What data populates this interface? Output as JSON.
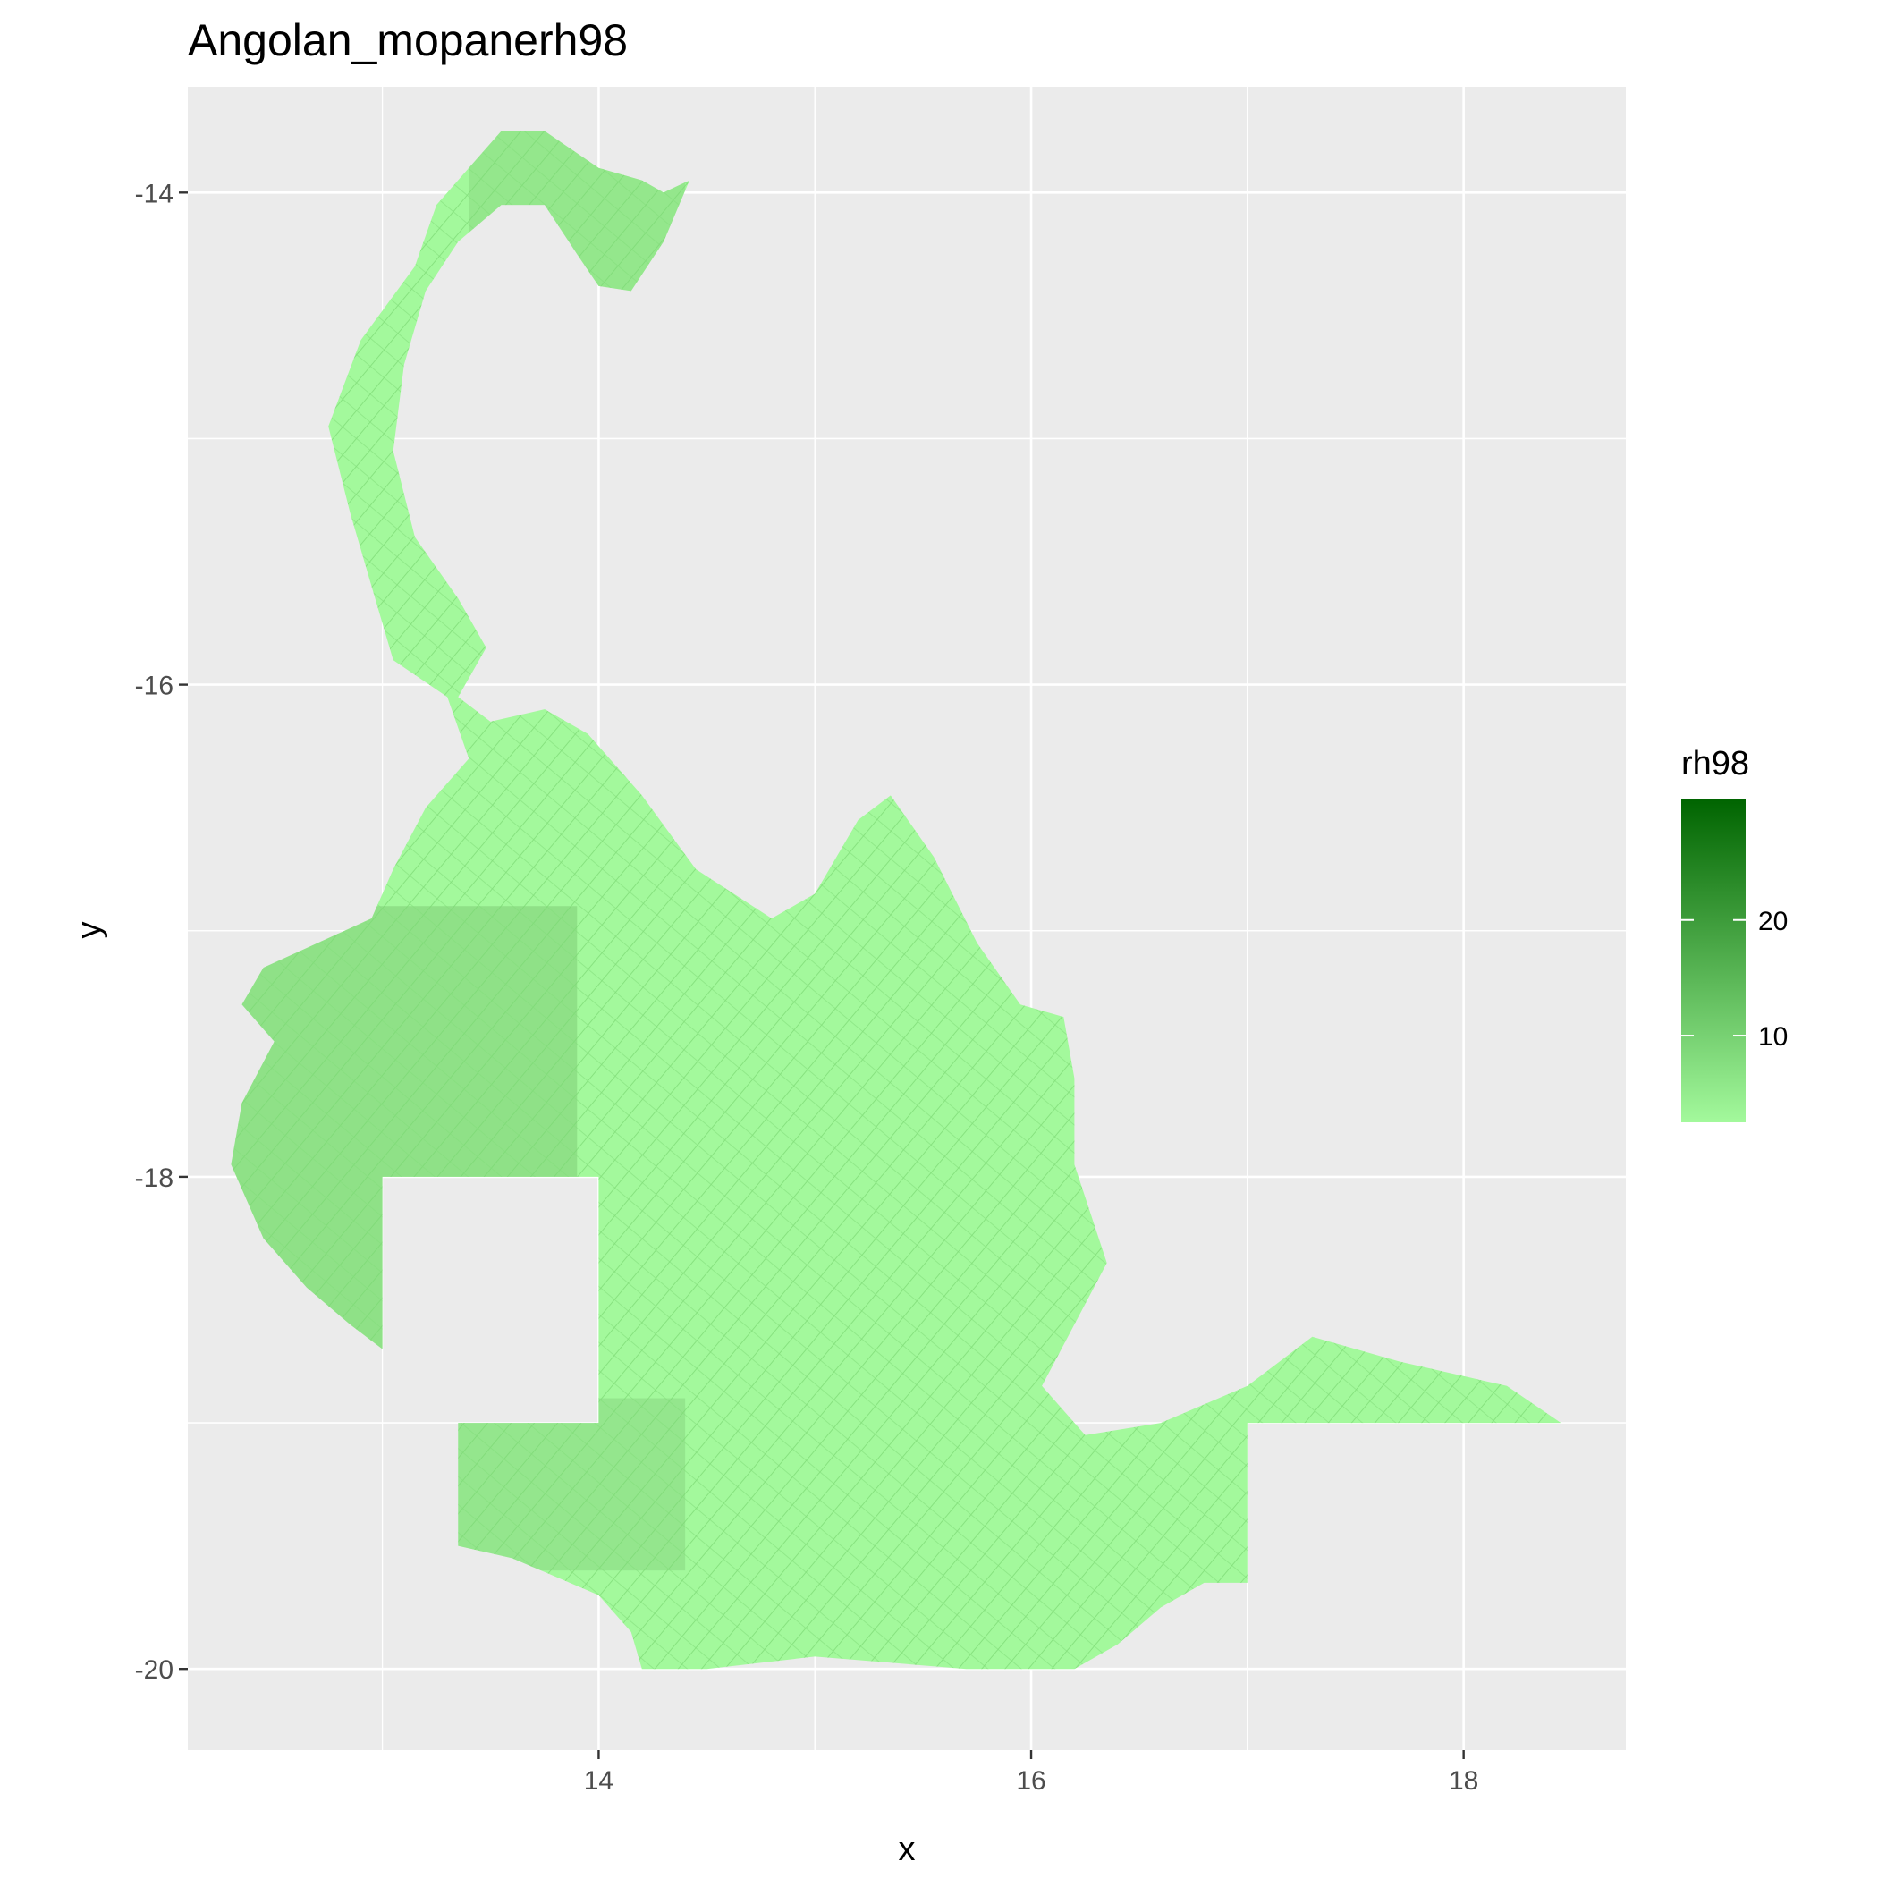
{
  "chart_data": {
    "type": "heatmap",
    "title": "Angolan_mopanerh98",
    "xlabel": "x",
    "ylabel": "y",
    "xlim": [
      12.1,
      18.75
    ],
    "ylim": [
      -20.33,
      -13.57
    ],
    "x_ticks": [
      14,
      16,
      18
    ],
    "x_tick_labels": [
      "14",
      "16",
      "18"
    ],
    "y_ticks": [
      -14,
      -16,
      -18,
      -20
    ],
    "y_tick_labels": [
      "-14",
      "-16",
      "-18",
      "-20"
    ],
    "grid": true,
    "legend": {
      "title": "rh98",
      "position": "right",
      "range": [
        2.5,
        30.5
      ],
      "ticks": [
        10,
        20
      ],
      "tick_labels": [
        "10",
        "20"
      ],
      "low_color": "#a3f99c",
      "high_color": "#006400"
    },
    "region": {
      "description_values": "raster of rh98 values over the region, mostly 3-15 (light green), darker patches in the western parts",
      "main_outline": [
        [
          13.55,
          -13.75
        ],
        [
          13.75,
          -13.75
        ],
        [
          14.0,
          -13.9
        ],
        [
          14.2,
          -13.95
        ],
        [
          14.3,
          -14.0
        ],
        [
          14.42,
          -13.95
        ],
        [
          14.3,
          -14.2
        ],
        [
          14.15,
          -14.4
        ],
        [
          14.0,
          -14.38
        ],
        [
          13.9,
          -14.25
        ],
        [
          13.75,
          -14.05
        ],
        [
          13.55,
          -14.05
        ],
        [
          13.35,
          -14.2
        ],
        [
          13.2,
          -14.4
        ],
        [
          13.1,
          -14.7
        ],
        [
          13.05,
          -15.05
        ],
        [
          13.15,
          -15.4
        ],
        [
          13.35,
          -15.65
        ],
        [
          13.48,
          -15.85
        ],
        [
          13.35,
          -16.05
        ],
        [
          13.5,
          -16.15
        ],
        [
          13.75,
          -16.1
        ],
        [
          13.95,
          -16.2
        ],
        [
          14.2,
          -16.45
        ],
        [
          14.45,
          -16.75
        ],
        [
          14.8,
          -16.95
        ],
        [
          15.0,
          -16.85
        ],
        [
          15.2,
          -16.55
        ],
        [
          15.35,
          -16.45
        ],
        [
          15.55,
          -16.7
        ],
        [
          15.75,
          -17.05
        ],
        [
          15.95,
          -17.3
        ],
        [
          16.15,
          -17.35
        ],
        [
          16.2,
          -17.6
        ],
        [
          16.2,
          -17.95
        ],
        [
          16.35,
          -18.35
        ],
        [
          16.2,
          -18.6
        ],
        [
          16.05,
          -18.85
        ],
        [
          16.25,
          -19.05
        ],
        [
          16.6,
          -19.0
        ],
        [
          17.0,
          -18.85
        ],
        [
          17.3,
          -18.65
        ],
        [
          17.7,
          -18.75
        ],
        [
          18.2,
          -18.85
        ],
        [
          18.45,
          -19.0
        ],
        [
          17.0,
          -19.0
        ],
        [
          17.0,
          -19.65
        ],
        [
          16.8,
          -19.65
        ],
        [
          16.6,
          -19.75
        ],
        [
          16.4,
          -19.9
        ],
        [
          16.2,
          -20.0
        ],
        [
          15.7,
          -20.0
        ],
        [
          15.0,
          -19.95
        ],
        [
          14.5,
          -20.0
        ],
        [
          14.2,
          -20.0
        ],
        [
          14.15,
          -19.85
        ],
        [
          14.0,
          -19.7
        ],
        [
          13.6,
          -19.55
        ],
        [
          13.35,
          -19.5
        ],
        [
          13.35,
          -19.0
        ],
        [
          13.5,
          -19.0
        ],
        [
          14.0,
          -19.0
        ],
        [
          14.0,
          -18.0
        ],
        [
          13.0,
          -18.0
        ],
        [
          13.0,
          -18.7
        ],
        [
          12.85,
          -18.6
        ],
        [
          12.65,
          -18.45
        ],
        [
          12.45,
          -18.25
        ],
        [
          12.3,
          -17.95
        ],
        [
          12.35,
          -17.7
        ],
        [
          12.5,
          -17.45
        ],
        [
          12.35,
          -17.3
        ],
        [
          12.45,
          -17.15
        ],
        [
          12.7,
          -17.05
        ],
        [
          12.95,
          -16.95
        ],
        [
          13.05,
          -16.75
        ],
        [
          13.2,
          -16.5
        ],
        [
          13.4,
          -16.3
        ],
        [
          13.3,
          -16.05
        ],
        [
          13.05,
          -15.9
        ],
        [
          12.95,
          -15.6
        ],
        [
          12.85,
          -15.3
        ],
        [
          12.75,
          -14.95
        ],
        [
          12.9,
          -14.6
        ],
        [
          13.15,
          -14.3
        ],
        [
          13.25,
          -14.05
        ],
        [
          13.4,
          -13.9
        ]
      ]
    }
  }
}
